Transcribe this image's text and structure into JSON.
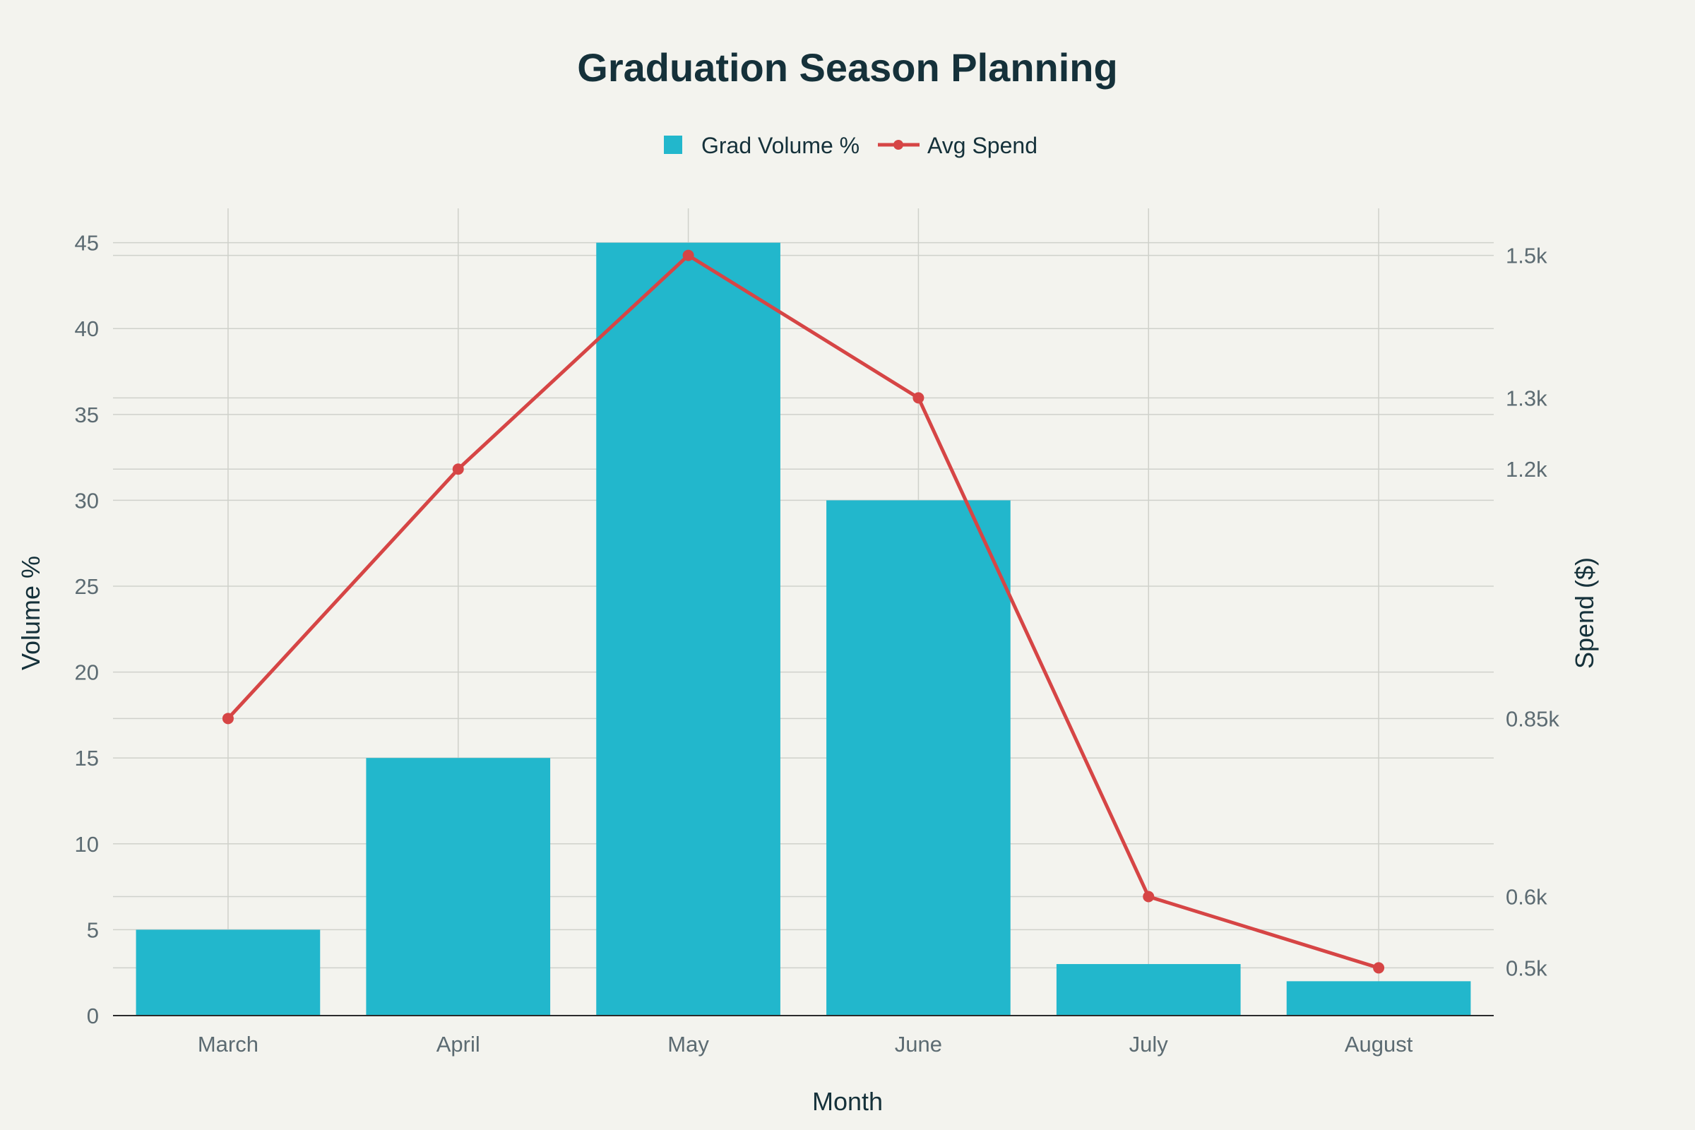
{
  "chart_data": {
    "type": "bar",
    "title": "Graduation Season Planning",
    "xlabel": "Month",
    "ylabel": "Volume %",
    "y2label": "Spend ($)",
    "categories": [
      "March",
      "April",
      "May",
      "June",
      "July",
      "August"
    ],
    "ylim": [
      0,
      47
    ],
    "y_ticks": [
      0,
      5,
      10,
      15,
      20,
      25,
      30,
      35,
      40,
      45
    ],
    "y2lim": [
      433,
      1566
    ],
    "y2_ticks": [
      {
        "value": 500,
        "label": "0.5k"
      },
      {
        "value": 600,
        "label": "0.6k"
      },
      {
        "value": 850,
        "label": "0.85k"
      },
      {
        "value": 1200,
        "label": "1.2k"
      },
      {
        "value": 1300,
        "label": "1.3k"
      },
      {
        "value": 1500,
        "label": "1.5k"
      }
    ],
    "grid": true,
    "legend_position": "top-center",
    "series": [
      {
        "name": "Grad Volume %",
        "type": "bar",
        "axis": "left",
        "color": "#22b7cc",
        "values": [
          5,
          15,
          45,
          30,
          3,
          2
        ]
      },
      {
        "name": "Avg Spend",
        "type": "line",
        "axis": "right",
        "color": "#d64545",
        "values": [
          850,
          1200,
          1500,
          1300,
          600,
          500
        ]
      }
    ]
  }
}
